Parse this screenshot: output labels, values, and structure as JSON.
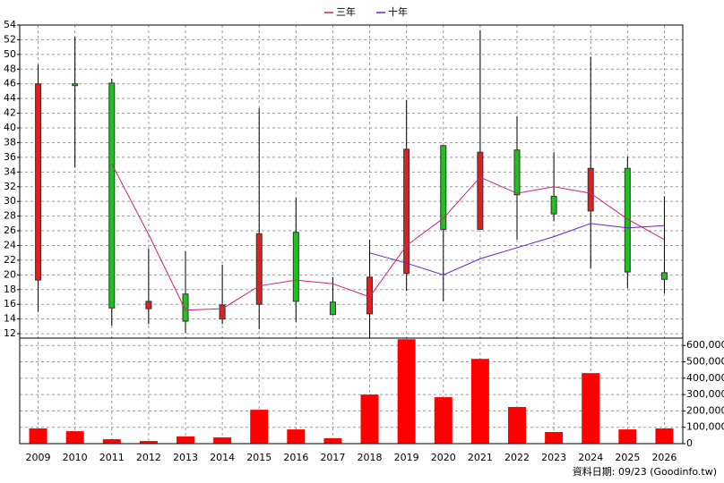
{
  "chart_data": [
    {
      "type": "candlestick",
      "categories": [
        "2009",
        "2010",
        "2011",
        "2012",
        "2013",
        "2014",
        "2015",
        "2016",
        "2017",
        "2018",
        "2019",
        "2020",
        "2021",
        "2022",
        "2023",
        "2024",
        "2025",
        "2026"
      ],
      "open": [
        19.3,
        46,
        46.1,
        15.4,
        17.4,
        14,
        16,
        25.8,
        16.3,
        14.7,
        20.2,
        37.6,
        26.2,
        37,
        30.7,
        28.7,
        34.5,
        20.3
      ],
      "high": [
        48.6,
        52.4,
        46.7,
        23.6,
        23.2,
        21.4,
        42.7,
        30.5,
        19.7,
        24.8,
        43.8,
        37.6,
        53.3,
        41.6,
        36.7,
        49.7,
        36.1,
        30.7
      ],
      "low": [
        15,
        34.6,
        13.1,
        13.3,
        12.1,
        13.3,
        12.6,
        13.6,
        14.6,
        11.4,
        17.8,
        16.4,
        26.2,
        24.8,
        27.3,
        20.9,
        18.2,
        17.5
      ],
      "close": [
        46,
        45.8,
        15.5,
        16.4,
        13.7,
        15.9,
        25.6,
        16.4,
        14.6,
        19.7,
        37.1,
        26.2,
        36.7,
        30.9,
        28.3,
        34.5,
        20.4,
        19.4
      ],
      "up_color": "#e02020",
      "down_color": "#20c020",
      "series": [
        {
          "name": "三年",
          "color": "#d0207a",
          "values": [
            null,
            null,
            35.1,
            25.5,
            15.2,
            15.4,
            18.5,
            19.3,
            18.8,
            17,
            24,
            27.7,
            33.3,
            31.1,
            32,
            31.1,
            27.6,
            24.8
          ]
        },
        {
          "name": "十年",
          "color": "#6a20c8",
          "values": [
            null,
            null,
            null,
            null,
            null,
            null,
            null,
            null,
            null,
            23,
            21.6,
            20,
            22.2,
            23.7,
            25.2,
            27,
            26.4,
            26.7
          ]
        }
      ],
      "legend": "top",
      "ylim": [
        11.4,
        54
      ],
      "yticks": [
        12,
        14,
        16,
        18,
        20,
        22,
        24,
        26,
        28,
        30,
        32,
        34,
        36,
        38,
        40,
        42,
        44,
        46,
        48,
        50,
        52,
        54
      ],
      "grid": true
    },
    {
      "type": "bar",
      "values": [
        93000,
        76000,
        27000,
        16000,
        44000,
        38000,
        207000,
        87000,
        33000,
        300000,
        638000,
        284000,
        518000,
        224000,
        71000,
        431000,
        87000,
        93000
      ],
      "color": "#ff0000",
      "ylim": [
        0,
        645000
      ],
      "yticks": [
        0,
        {
          "value": 100000,
          "label": "100,000"
        },
        {
          "value": 200000,
          "label": "200,000"
        },
        {
          "value": 300000,
          "label": "300,000"
        },
        {
          "value": 400000,
          "label": "400,000"
        },
        {
          "value": 500000,
          "label": "500,000"
        },
        {
          "value": 600000,
          "label": "600,000"
        }
      ],
      "grid": true,
      "annotation": "資料日期: 09/23 (Goodinfo.tw)"
    }
  ]
}
